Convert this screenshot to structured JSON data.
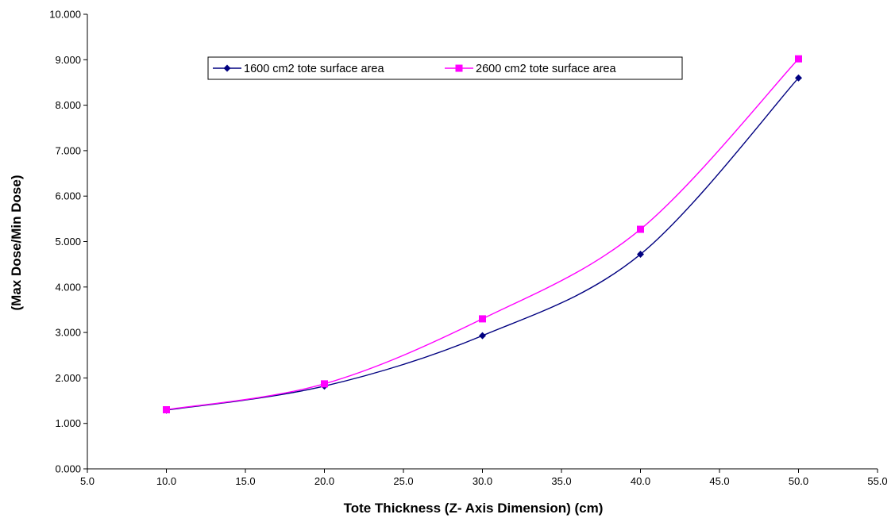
{
  "chart_data": {
    "type": "line",
    "title": "",
    "xlabel": "Tote Thickness (Z- Axis Dimension) (cm)",
    "ylabel": "(Max Dose/Min Dose)",
    "xlim": [
      5.0,
      55.0
    ],
    "ylim": [
      0.0,
      10.0
    ],
    "x_ticks": [
      "5.0",
      "10.0",
      "15.0",
      "20.0",
      "25.0",
      "30.0",
      "35.0",
      "40.0",
      "45.0",
      "50.0",
      "55.0"
    ],
    "y_ticks": [
      "0.000",
      "1.000",
      "2.000",
      "3.000",
      "4.000",
      "5.000",
      "6.000",
      "7.000",
      "8.000",
      "9.000",
      "10.000"
    ],
    "grid": false,
    "legend_position": "top-center",
    "x": [
      10.0,
      20.0,
      30.0,
      40.0,
      50.0
    ],
    "series": [
      {
        "name": "1600 cm2 tote surface area",
        "color": "#000080",
        "marker": "diamond",
        "values": [
          1.29,
          1.82,
          2.93,
          4.72,
          8.6
        ]
      },
      {
        "name": "2600 cm2 tote surface area",
        "color": "#ff00ff",
        "marker": "square",
        "values": [
          1.3,
          1.87,
          3.3,
          5.27,
          9.02
        ]
      }
    ]
  }
}
